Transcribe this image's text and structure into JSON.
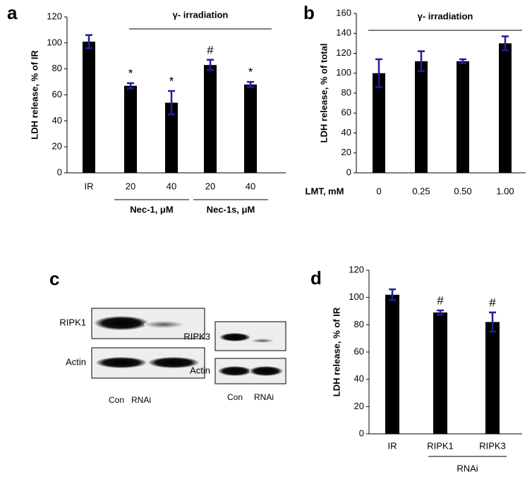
{
  "chart_data": [
    {
      "type": "bar",
      "panel": "a",
      "ylabel": "LDH release, % of IR",
      "treatment": "γ- irradiation",
      "categories": [
        "IR",
        "20",
        "40",
        "20",
        "40"
      ],
      "group_labels": [
        "Nec-1, μM",
        "Nec-1s, μM"
      ],
      "values": [
        101,
        67,
        54,
        83,
        68
      ],
      "errors": [
        5,
        2,
        9,
        4,
        2
      ],
      "annotations": [
        null,
        "*",
        "*",
        "#",
        "*"
      ],
      "color": "#000000",
      "error_color": "#1f1f9a",
      "ylim": [
        0,
        120
      ],
      "yticks": [
        0,
        20,
        40,
        60,
        80,
        100,
        120
      ]
    },
    {
      "type": "bar",
      "panel": "b",
      "ylabel": "LDH release, % of total",
      "treatment": "γ- irradiation",
      "xlabel": "LMT, mM",
      "categories": [
        "0",
        "0.25",
        "0.50",
        "1.00"
      ],
      "values": [
        100,
        112,
        112,
        130
      ],
      "errors": [
        14,
        10,
        2,
        7
      ],
      "color": "#000000",
      "error_color": "#1f1f9a",
      "ylim": [
        0,
        160
      ],
      "yticks": [
        0,
        20,
        40,
        60,
        80,
        100,
        120,
        140,
        160
      ]
    },
    {
      "type": "bar",
      "panel": "d",
      "ylabel": "LDH release, % of IR",
      "categories": [
        "IR",
        "RIPK1",
        "RIPK3"
      ],
      "group_labels": [
        "RNAi"
      ],
      "values": [
        102,
        89,
        82
      ],
      "errors": [
        4,
        1.5,
        7
      ],
      "annotations": [
        null,
        "#",
        "#"
      ],
      "color": "#000000",
      "error_color": "#1f1f9a",
      "ylim": [
        0,
        120
      ],
      "yticks": [
        0,
        20,
        40,
        60,
        80,
        100,
        120
      ]
    }
  ],
  "blots": {
    "panel": "c",
    "left": {
      "rows": [
        "RIPK1",
        "Actin"
      ],
      "lanes": [
        "Con",
        "RNAi"
      ]
    },
    "right": {
      "rows": [
        "RIPK3",
        "Actin"
      ],
      "lanes": [
        "Con",
        "RNAi"
      ]
    }
  }
}
